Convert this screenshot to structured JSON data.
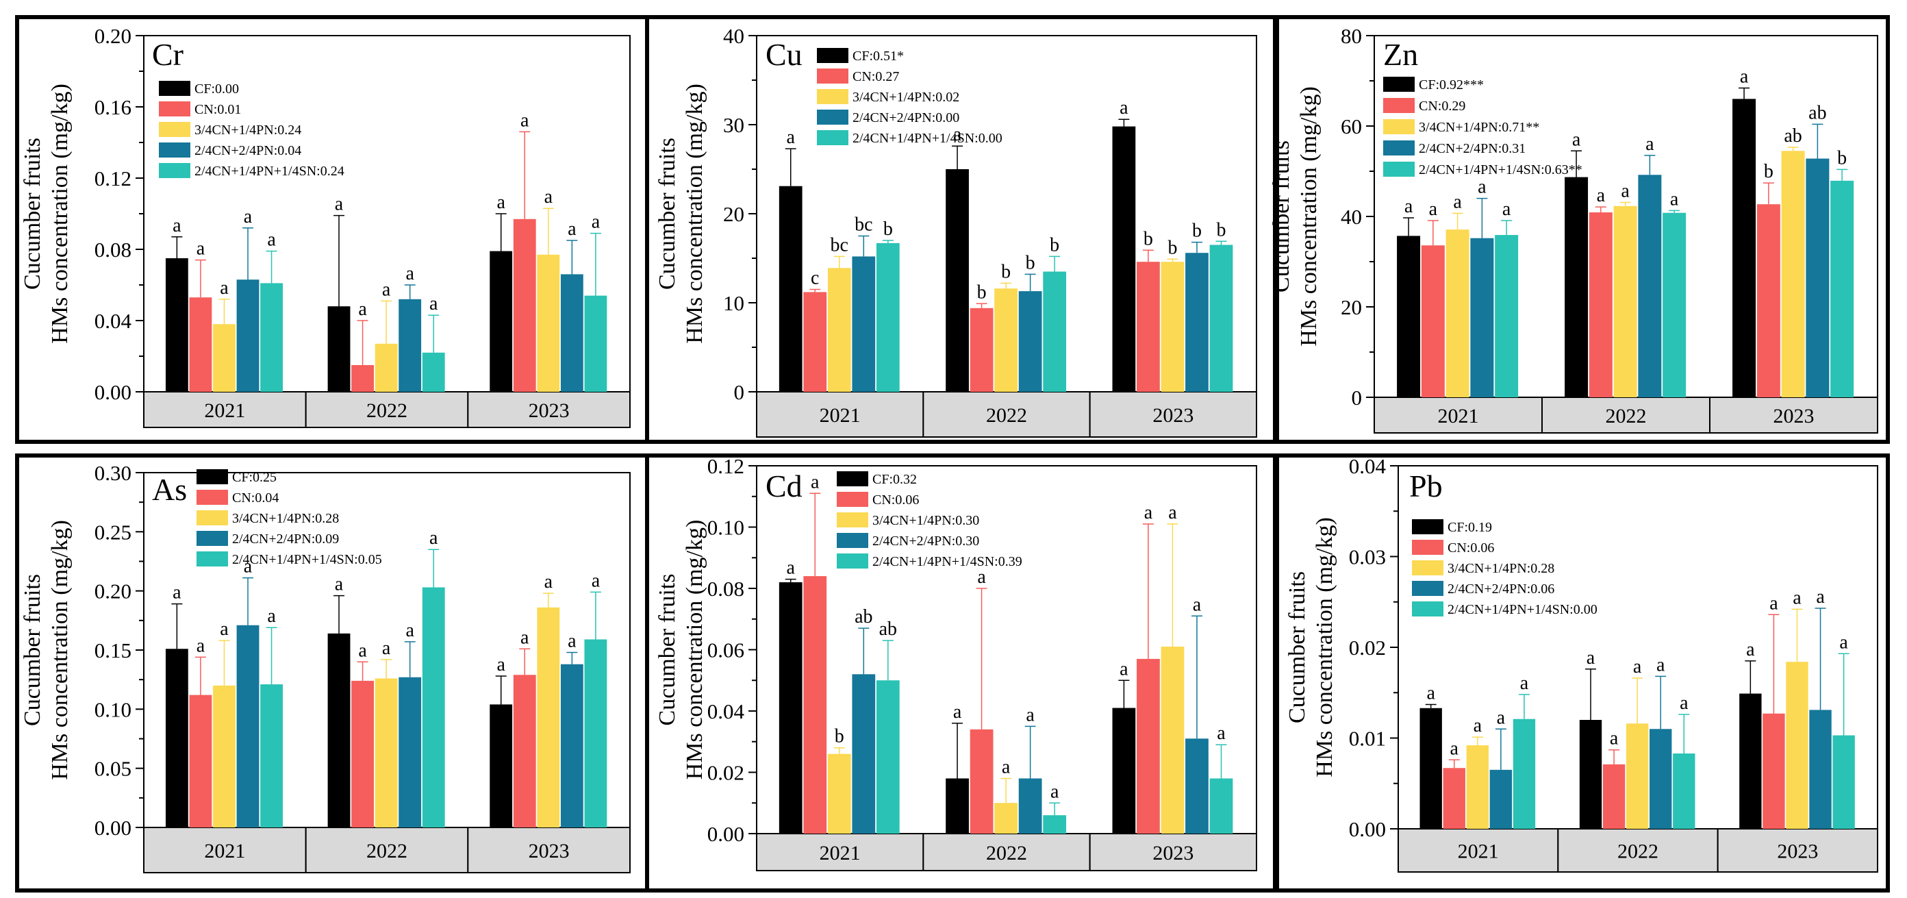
{
  "chart_data": [
    {
      "type": "bar",
      "title": "Cr",
      "ylabel_line1": "Cucumber fruits",
      "ylabel_line2": "HMs concentration (mg/kg)",
      "ylim": [
        0,
        0.2
      ],
      "yticks": [
        "0.00",
        "0.04",
        "0.08",
        "0.12",
        "0.16",
        "0.20"
      ],
      "categories": [
        "2021",
        "2022",
        "2023"
      ],
      "legend_position": "top-left",
      "series": [
        {
          "name": "CF",
          "legend": "CF:0.00",
          "color": "#000000",
          "values": [
            0.075,
            0.048,
            0.079
          ],
          "errors": [
            0.012,
            0.051,
            0.021
          ],
          "letters": [
            "a",
            "a",
            "a"
          ]
        },
        {
          "name": "CN",
          "legend": "CN:0.01",
          "color": "#f55e5c",
          "values": [
            0.053,
            0.015,
            0.097
          ],
          "errors": [
            0.021,
            0.025,
            0.049
          ],
          "letters": [
            "a",
            "a",
            "a"
          ]
        },
        {
          "name": "3/4CN+1/4PN",
          "legend": "3/4CN+1/4PN:0.24",
          "color": "#fbd952",
          "values": [
            0.038,
            0.027,
            0.077
          ],
          "errors": [
            0.014,
            0.024,
            0.026
          ],
          "letters": [
            "a",
            "a",
            "a"
          ]
        },
        {
          "name": "2/4CN+2/4PN",
          "legend": "2/4CN+2/4PN:0.04",
          "color": "#157799",
          "values": [
            0.063,
            0.052,
            0.066
          ],
          "errors": [
            0.029,
            0.008,
            0.019
          ],
          "letters": [
            "a",
            "a",
            "a"
          ]
        },
        {
          "name": "2/4CN+1/4PN+1/4SN",
          "legend": "2/4CN+1/4PN+1/4SN:0.24",
          "color": "#2ac2b4",
          "values": [
            0.061,
            0.022,
            0.054
          ],
          "errors": [
            0.018,
            0.021,
            0.035
          ],
          "letters": [
            "a",
            "a",
            "a"
          ]
        }
      ]
    },
    {
      "type": "bar",
      "title": "Cu",
      "ylabel_line1": "Cucumber fruits",
      "ylabel_line2": "HMs concentration (mg/kg)",
      "ylim": [
        0,
        40
      ],
      "yticks": [
        "0",
        "10",
        "20",
        "30",
        "40"
      ],
      "categories": [
        "2021",
        "2022",
        "2023"
      ],
      "legend_position": "top-left",
      "series": [
        {
          "name": "CF",
          "legend": "CF:0.51*",
          "color": "#000000",
          "values": [
            23.1,
            25.0,
            29.8
          ],
          "errors": [
            4.2,
            2.6,
            0.8
          ],
          "letters": [
            "a",
            "a",
            "a"
          ]
        },
        {
          "name": "CN",
          "legend": "CN:0.27",
          "color": "#f55e5c",
          "values": [
            11.2,
            9.4,
            14.6
          ],
          "errors": [
            0.3,
            0.5,
            1.3
          ],
          "letters": [
            "c",
            "b",
            "b"
          ]
        },
        {
          "name": "3/4CN+1/4PN",
          "legend": "3/4CN+1/4PN:0.02",
          "color": "#fbd952",
          "values": [
            13.9,
            11.6,
            14.6
          ],
          "errors": [
            1.3,
            0.6,
            0.3
          ],
          "letters": [
            "bc",
            "b",
            "b"
          ]
        },
        {
          "name": "2/4CN+2/4PN",
          "legend": "2/4CN+2/4PN:0.00",
          "color": "#157799",
          "values": [
            15.2,
            11.3,
            15.6
          ],
          "errors": [
            2.3,
            1.9,
            1.2
          ],
          "letters": [
            "bc",
            "b",
            "b"
          ]
        },
        {
          "name": "2/4CN+1/4PN+1/4SN",
          "legend": "2/4CN+1/4PN+1/4SN:0.00",
          "color": "#2ac2b4",
          "values": [
            16.7,
            13.5,
            16.5
          ],
          "errors": [
            0.3,
            1.7,
            0.4
          ],
          "letters": [
            "b",
            "b",
            "b"
          ]
        }
      ]
    },
    {
      "type": "bar",
      "title": "Zn",
      "ylabel_line1": "Cucumber fruits",
      "ylabel_line2": "HMs concentration (mg/kg)",
      "ylim": [
        0,
        80
      ],
      "yticks": [
        "0",
        "20",
        "40",
        "60",
        "80"
      ],
      "categories": [
        "2021",
        "2022",
        "2023"
      ],
      "legend_position": "top-left",
      "series": [
        {
          "name": "CF",
          "legend": "CF:0.92***",
          "color": "#000000",
          "values": [
            35.7,
            48.7,
            66.0
          ],
          "errors": [
            4.0,
            5.8,
            2.4
          ],
          "letters": [
            "a",
            "a",
            "a"
          ]
        },
        {
          "name": "CN",
          "legend": "CN:0.29",
          "color": "#f55e5c",
          "values": [
            33.6,
            40.9,
            42.7
          ],
          "errors": [
            5.5,
            1.2,
            4.7
          ],
          "letters": [
            "a",
            "a",
            "b"
          ]
        },
        {
          "name": "3/4CN+1/4PN",
          "legend": "3/4CN+1/4PN:0.71**",
          "color": "#fbd952",
          "values": [
            37.1,
            42.3,
            54.5
          ],
          "errors": [
            3.6,
            0.8,
            0.8
          ],
          "letters": [
            "a",
            "a",
            "ab"
          ]
        },
        {
          "name": "2/4CN+2/4PN",
          "legend": "2/4CN+2/4PN:0.31",
          "color": "#157799",
          "values": [
            35.2,
            49.2,
            52.8
          ],
          "errors": [
            8.8,
            4.3,
            7.6
          ],
          "letters": [
            "a",
            "a",
            "ab"
          ]
        },
        {
          "name": "2/4CN+1/4PN+1/4SN",
          "legend": "2/4CN+1/4PN+1/4SN:0.63**",
          "color": "#2ac2b4",
          "values": [
            35.9,
            40.8,
            47.9
          ],
          "errors": [
            3.2,
            0.5,
            2.5
          ],
          "letters": [
            "a",
            "a",
            "b"
          ]
        }
      ]
    },
    {
      "type": "bar",
      "title": "As",
      "ylabel_line1": "Cucumber fruits",
      "ylabel_line2": "HMs concentration (mg/kg)",
      "ylim": [
        0,
        0.3
      ],
      "yticks": [
        "0.00",
        "0.05",
        "0.10",
        "0.15",
        "0.20",
        "0.25",
        "0.30"
      ],
      "categories": [
        "2021",
        "2022",
        "2023"
      ],
      "legend_position": "top-left",
      "series": [
        {
          "name": "CF",
          "legend": "CF:0.25",
          "color": "#000000",
          "values": [
            0.151,
            0.164,
            0.104
          ],
          "errors": [
            0.038,
            0.032,
            0.024
          ],
          "letters": [
            "a",
            "a",
            "a"
          ]
        },
        {
          "name": "CN",
          "legend": "CN:0.04",
          "color": "#f55e5c",
          "values": [
            0.112,
            0.124,
            0.129
          ],
          "errors": [
            0.032,
            0.016,
            0.022
          ],
          "letters": [
            "a",
            "a",
            "a"
          ]
        },
        {
          "name": "3/4CN+1/4PN",
          "legend": "3/4CN+1/4PN:0.28",
          "color": "#fbd952",
          "values": [
            0.12,
            0.126,
            0.186
          ],
          "errors": [
            0.038,
            0.016,
            0.012
          ],
          "letters": [
            "a",
            "a",
            "a"
          ]
        },
        {
          "name": "2/4CN+2/4PN",
          "legend": "2/4CN+2/4PN:0.09",
          "color": "#157799",
          "values": [
            0.171,
            0.127,
            0.138
          ],
          "errors": [
            0.04,
            0.03,
            0.01
          ],
          "letters": [
            "a",
            "a",
            "a"
          ]
        },
        {
          "name": "2/4CN+1/4PN+1/4SN",
          "legend": "2/4CN+1/4PN+1/4SN:0.05",
          "color": "#2ac2b4",
          "values": [
            0.121,
            0.203,
            0.159
          ],
          "errors": [
            0.048,
            0.032,
            0.04
          ],
          "letters": [
            "a",
            "a",
            "a"
          ]
        }
      ]
    },
    {
      "type": "bar",
      "title": "Cd",
      "ylabel_line1": "Cucumber fruits",
      "ylabel_line2": "HMs concentration (mg/kg)",
      "ylim": [
        0,
        0.12
      ],
      "yticks": [
        "0.00",
        "0.02",
        "0.04",
        "0.06",
        "0.08",
        "0.10",
        "0.12"
      ],
      "categories": [
        "2021",
        "2022",
        "2023"
      ],
      "legend_position": "top-left",
      "series": [
        {
          "name": "CF",
          "legend": "CF:0.32",
          "color": "#000000",
          "values": [
            0.082,
            0.018,
            0.041
          ],
          "errors": [
            0.001,
            0.018,
            0.009
          ],
          "letters": [
            "a",
            "a",
            "a"
          ]
        },
        {
          "name": "CN",
          "legend": "CN:0.06",
          "color": "#f55e5c",
          "values": [
            0.084,
            0.034,
            0.057
          ],
          "errors": [
            0.027,
            0.046,
            0.044
          ],
          "letters": [
            "a",
            "a",
            "a"
          ]
        },
        {
          "name": "3/4CN+1/4PN",
          "legend": "3/4CN+1/4PN:0.30",
          "color": "#fbd952",
          "values": [
            0.026,
            0.01,
            0.061
          ],
          "errors": [
            0.002,
            0.008,
            0.04
          ],
          "letters": [
            "b",
            "a",
            "a"
          ]
        },
        {
          "name": "2/4CN+2/4PN",
          "legend": "2/4CN+2/4PN:0.30",
          "color": "#157799",
          "values": [
            0.052,
            0.018,
            0.031
          ],
          "errors": [
            0.015,
            0.017,
            0.04
          ],
          "letters": [
            "ab",
            "a",
            "a"
          ]
        },
        {
          "name": "2/4CN+1/4PN+1/4SN",
          "legend": "2/4CN+1/4PN+1/4SN:0.39",
          "color": "#2ac2b4",
          "values": [
            0.05,
            0.006,
            0.018
          ],
          "errors": [
            0.013,
            0.004,
            0.011
          ],
          "letters": [
            "ab",
            "a",
            "a"
          ]
        }
      ]
    },
    {
      "type": "bar",
      "title": "Pb",
      "ylabel_line1": "Cucumber fruits",
      "ylabel_line2": "HMs concentration (mg/kg)",
      "ylim": [
        0,
        0.04
      ],
      "yticks": [
        "0.00",
        "0.01",
        "0.02",
        "0.03",
        "0.04"
      ],
      "categories": [
        "2021",
        "2022",
        "2023"
      ],
      "legend_position": "top-left",
      "series": [
        {
          "name": "CF",
          "legend": "CF:0.19",
          "color": "#000000",
          "values": [
            0.0133,
            0.012,
            0.0149
          ],
          "errors": [
            0.0004,
            0.0056,
            0.0036
          ],
          "letters": [
            "a",
            "a",
            "a"
          ]
        },
        {
          "name": "CN",
          "legend": "CN:0.06",
          "color": "#f55e5c",
          "values": [
            0.0067,
            0.0071,
            0.0127
          ],
          "errors": [
            0.0009,
            0.0016,
            0.0109
          ],
          "letters": [
            "a",
            "a",
            "a"
          ]
        },
        {
          "name": "3/4CN+1/4PN",
          "legend": "3/4CN+1/4PN:0.28",
          "color": "#fbd952",
          "values": [
            0.0092,
            0.0116,
            0.0184
          ],
          "errors": [
            0.0009,
            0.005,
            0.0058
          ],
          "letters": [
            "a",
            "a",
            "a"
          ]
        },
        {
          "name": "2/4CN+2/4PN",
          "legend": "2/4CN+2/4PN:0.06",
          "color": "#157799",
          "values": [
            0.0065,
            0.011,
            0.0131
          ],
          "errors": [
            0.0045,
            0.0058,
            0.0112
          ],
          "letters": [
            "a",
            "a",
            "a"
          ]
        },
        {
          "name": "2/4CN+1/4PN+1/4SN",
          "legend": "2/4CN+1/4PN+1/4SN:0.00",
          "color": "#2ac2b4",
          "values": [
            0.0121,
            0.0083,
            0.0103
          ],
          "errors": [
            0.0027,
            0.0043,
            0.009
          ],
          "letters": [
            "a",
            "a",
            "a"
          ]
        }
      ]
    }
  ]
}
